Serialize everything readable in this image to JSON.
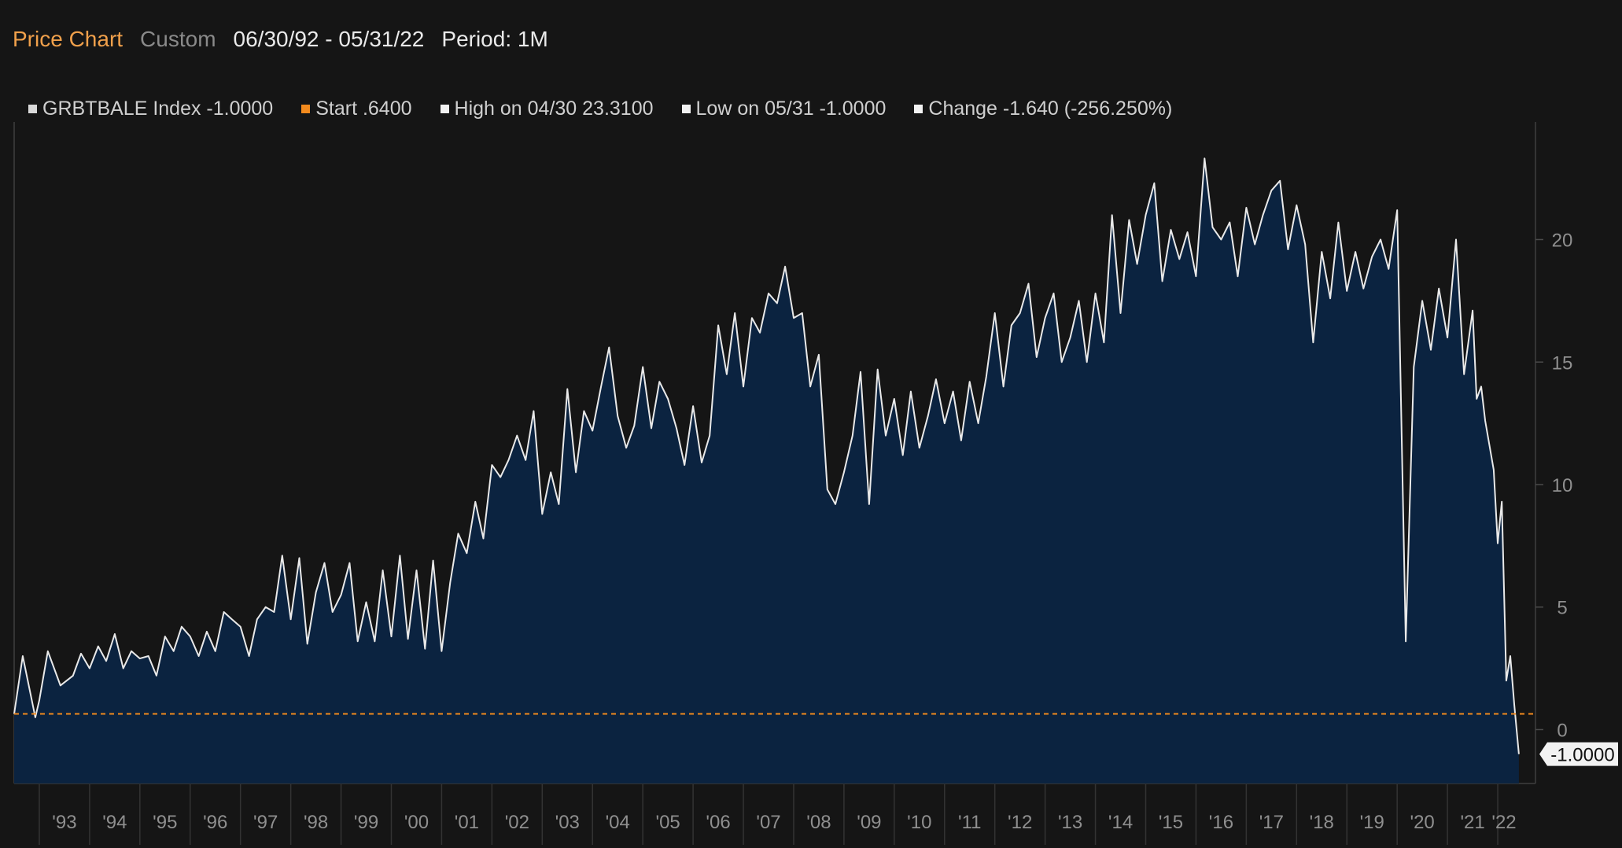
{
  "header": {
    "title": "Price Chart",
    "mode": "Custom",
    "date_range": "06/30/92 - 05/31/22",
    "period": "Period: 1M"
  },
  "legend": [
    {
      "label": "GRBTBALE Index -1.0000",
      "color": "#d9d9d9"
    },
    {
      "label": "Start .6400",
      "color": "#f28a1d"
    },
    {
      "label": "High on 04/30 23.3100",
      "color": "#ffffff"
    },
    {
      "label": "Low on 05/31 -1.0000",
      "color": "#ffffff"
    },
    {
      "label": "Change -1.640 (-256.250%)",
      "color": "#ffffff"
    }
  ],
  "colors": {
    "background": "#151515",
    "area_fill": "#0b2340",
    "line": "#e9e9e9",
    "start_line": "#f28a1d",
    "grid": "#3a3a3a"
  },
  "chart_data": {
    "type": "area",
    "series": [
      {
        "name": "GRBTBALE Index",
        "points": [
          [
            1992.5,
            0.64
          ],
          [
            1992.67,
            3.0
          ],
          [
            1992.92,
            0.5
          ],
          [
            1993.0,
            1.2
          ],
          [
            1993.17,
            3.2
          ],
          [
            1993.42,
            1.8
          ],
          [
            1993.67,
            2.2
          ],
          [
            1993.83,
            3.1
          ],
          [
            1994.0,
            2.5
          ],
          [
            1994.17,
            3.4
          ],
          [
            1994.33,
            2.8
          ],
          [
            1994.5,
            3.9
          ],
          [
            1994.67,
            2.5
          ],
          [
            1994.83,
            3.2
          ],
          [
            1995.0,
            2.9
          ],
          [
            1995.17,
            3.0
          ],
          [
            1995.33,
            2.2
          ],
          [
            1995.5,
            3.8
          ],
          [
            1995.67,
            3.2
          ],
          [
            1995.83,
            4.2
          ],
          [
            1996.0,
            3.8
          ],
          [
            1996.17,
            3.0
          ],
          [
            1996.33,
            4.0
          ],
          [
            1996.5,
            3.2
          ],
          [
            1996.67,
            4.8
          ],
          [
            1996.83,
            4.5
          ],
          [
            1997.0,
            4.2
          ],
          [
            1997.17,
            3.0
          ],
          [
            1997.33,
            4.5
          ],
          [
            1997.5,
            5.0
          ],
          [
            1997.67,
            4.8
          ],
          [
            1997.83,
            7.1
          ],
          [
            1998.0,
            4.5
          ],
          [
            1998.17,
            7.0
          ],
          [
            1998.33,
            3.5
          ],
          [
            1998.5,
            5.6
          ],
          [
            1998.67,
            6.8
          ],
          [
            1998.83,
            4.8
          ],
          [
            1999.0,
            5.5
          ],
          [
            1999.17,
            6.8
          ],
          [
            1999.33,
            3.6
          ],
          [
            1999.5,
            5.2
          ],
          [
            1999.67,
            3.6
          ],
          [
            1999.83,
            6.5
          ],
          [
            2000.0,
            3.8
          ],
          [
            2000.17,
            7.1
          ],
          [
            2000.33,
            3.7
          ],
          [
            2000.5,
            6.5
          ],
          [
            2000.67,
            3.3
          ],
          [
            2000.83,
            6.9
          ],
          [
            2001.0,
            3.2
          ],
          [
            2001.17,
            6.0
          ],
          [
            2001.33,
            8.0
          ],
          [
            2001.5,
            7.2
          ],
          [
            2001.67,
            9.3
          ],
          [
            2001.83,
            7.8
          ],
          [
            2002.0,
            10.8
          ],
          [
            2002.17,
            10.3
          ],
          [
            2002.33,
            11.0
          ],
          [
            2002.5,
            12.0
          ],
          [
            2002.67,
            11.0
          ],
          [
            2002.83,
            13.0
          ],
          [
            2003.0,
            8.8
          ],
          [
            2003.17,
            10.5
          ],
          [
            2003.33,
            9.2
          ],
          [
            2003.5,
            13.9
          ],
          [
            2003.67,
            10.5
          ],
          [
            2003.83,
            13.0
          ],
          [
            2004.0,
            12.2
          ],
          [
            2004.17,
            14.0
          ],
          [
            2004.33,
            15.6
          ],
          [
            2004.5,
            12.8
          ],
          [
            2004.67,
            11.5
          ],
          [
            2004.83,
            12.4
          ],
          [
            2005.0,
            14.8
          ],
          [
            2005.17,
            12.3
          ],
          [
            2005.33,
            14.2
          ],
          [
            2005.5,
            13.5
          ],
          [
            2005.67,
            12.3
          ],
          [
            2005.83,
            10.8
          ],
          [
            2006.0,
            13.2
          ],
          [
            2006.17,
            10.9
          ],
          [
            2006.33,
            12.0
          ],
          [
            2006.5,
            16.5
          ],
          [
            2006.67,
            14.5
          ],
          [
            2006.83,
            17.0
          ],
          [
            2007.0,
            14.0
          ],
          [
            2007.17,
            16.8
          ],
          [
            2007.33,
            16.2
          ],
          [
            2007.5,
            17.8
          ],
          [
            2007.67,
            17.4
          ],
          [
            2007.83,
            18.9
          ],
          [
            2008.0,
            16.8
          ],
          [
            2008.17,
            17.0
          ],
          [
            2008.33,
            14.0
          ],
          [
            2008.5,
            15.3
          ],
          [
            2008.67,
            9.8
          ],
          [
            2008.83,
            9.2
          ],
          [
            2009.0,
            10.5
          ],
          [
            2009.17,
            12.0
          ],
          [
            2009.33,
            14.6
          ],
          [
            2009.5,
            9.2
          ],
          [
            2009.67,
            14.7
          ],
          [
            2009.83,
            12.0
          ],
          [
            2010.0,
            13.5
          ],
          [
            2010.17,
            11.2
          ],
          [
            2010.33,
            13.8
          ],
          [
            2010.5,
            11.5
          ],
          [
            2010.67,
            12.8
          ],
          [
            2010.83,
            14.3
          ],
          [
            2011.0,
            12.5
          ],
          [
            2011.17,
            13.8
          ],
          [
            2011.33,
            11.8
          ],
          [
            2011.5,
            14.2
          ],
          [
            2011.67,
            12.5
          ],
          [
            2011.83,
            14.4
          ],
          [
            2012.0,
            17.0
          ],
          [
            2012.17,
            14.0
          ],
          [
            2012.33,
            16.5
          ],
          [
            2012.5,
            17.0
          ],
          [
            2012.67,
            18.2
          ],
          [
            2012.83,
            15.2
          ],
          [
            2013.0,
            16.8
          ],
          [
            2013.17,
            17.8
          ],
          [
            2013.33,
            15.0
          ],
          [
            2013.5,
            16.0
          ],
          [
            2013.67,
            17.5
          ],
          [
            2013.83,
            15.0
          ],
          [
            2014.0,
            17.8
          ],
          [
            2014.17,
            15.8
          ],
          [
            2014.33,
            21.0
          ],
          [
            2014.5,
            17.0
          ],
          [
            2014.67,
            20.8
          ],
          [
            2014.83,
            19.0
          ],
          [
            2015.0,
            21.0
          ],
          [
            2015.17,
            22.3
          ],
          [
            2015.33,
            18.3
          ],
          [
            2015.5,
            20.4
          ],
          [
            2015.67,
            19.2
          ],
          [
            2015.83,
            20.3
          ],
          [
            2016.0,
            18.5
          ],
          [
            2016.17,
            23.31
          ],
          [
            2016.33,
            20.5
          ],
          [
            2016.5,
            20.0
          ],
          [
            2016.67,
            20.7
          ],
          [
            2016.83,
            18.5
          ],
          [
            2017.0,
            21.3
          ],
          [
            2017.17,
            19.8
          ],
          [
            2017.33,
            21.0
          ],
          [
            2017.5,
            22.0
          ],
          [
            2017.67,
            22.4
          ],
          [
            2017.83,
            19.6
          ],
          [
            2018.0,
            21.4
          ],
          [
            2018.17,
            19.8
          ],
          [
            2018.33,
            15.8
          ],
          [
            2018.5,
            19.5
          ],
          [
            2018.67,
            17.6
          ],
          [
            2018.83,
            20.7
          ],
          [
            2019.0,
            17.9
          ],
          [
            2019.17,
            19.5
          ],
          [
            2019.33,
            18.0
          ],
          [
            2019.5,
            19.3
          ],
          [
            2019.67,
            20.0
          ],
          [
            2019.83,
            18.8
          ],
          [
            2020.0,
            21.2
          ],
          [
            2020.17,
            3.6
          ],
          [
            2020.33,
            14.8
          ],
          [
            2020.5,
            17.5
          ],
          [
            2020.67,
            15.5
          ],
          [
            2020.83,
            18.0
          ],
          [
            2021.0,
            16.0
          ],
          [
            2021.17,
            20.0
          ],
          [
            2021.33,
            14.5
          ],
          [
            2021.5,
            17.1
          ],
          [
            2021.58,
            13.5
          ],
          [
            2021.67,
            14.0
          ],
          [
            2021.75,
            12.6
          ],
          [
            2021.92,
            10.6
          ],
          [
            2022.0,
            7.6
          ],
          [
            2022.08,
            9.3
          ],
          [
            2022.17,
            2.0
          ],
          [
            2022.25,
            3.0
          ],
          [
            2022.33,
            1.0
          ],
          [
            2022.42,
            -1.0
          ]
        ]
      }
    ],
    "start_value": 0.64,
    "last_value_label": "-1.0000",
    "y_ticks": [
      "0",
      "5",
      "10",
      "15",
      "20"
    ],
    "x_ticks": [
      "'93",
      "'94",
      "'95",
      "'96",
      "'97",
      "'98",
      "'99",
      "'00",
      "'01",
      "'02",
      "'03",
      "'04",
      "'05",
      "'06",
      "'07",
      "'08",
      "'09",
      "'10",
      "'11",
      "'12",
      "'13",
      "'14",
      "'15",
      "'16",
      "'17",
      "'18",
      "'19",
      "'20",
      "'21",
      "'22"
    ],
    "xlim": [
      1992.5,
      2022.75
    ],
    "ylim": [
      -2.2,
      24.8
    ],
    "grid": false,
    "legend_position": "top-left"
  }
}
